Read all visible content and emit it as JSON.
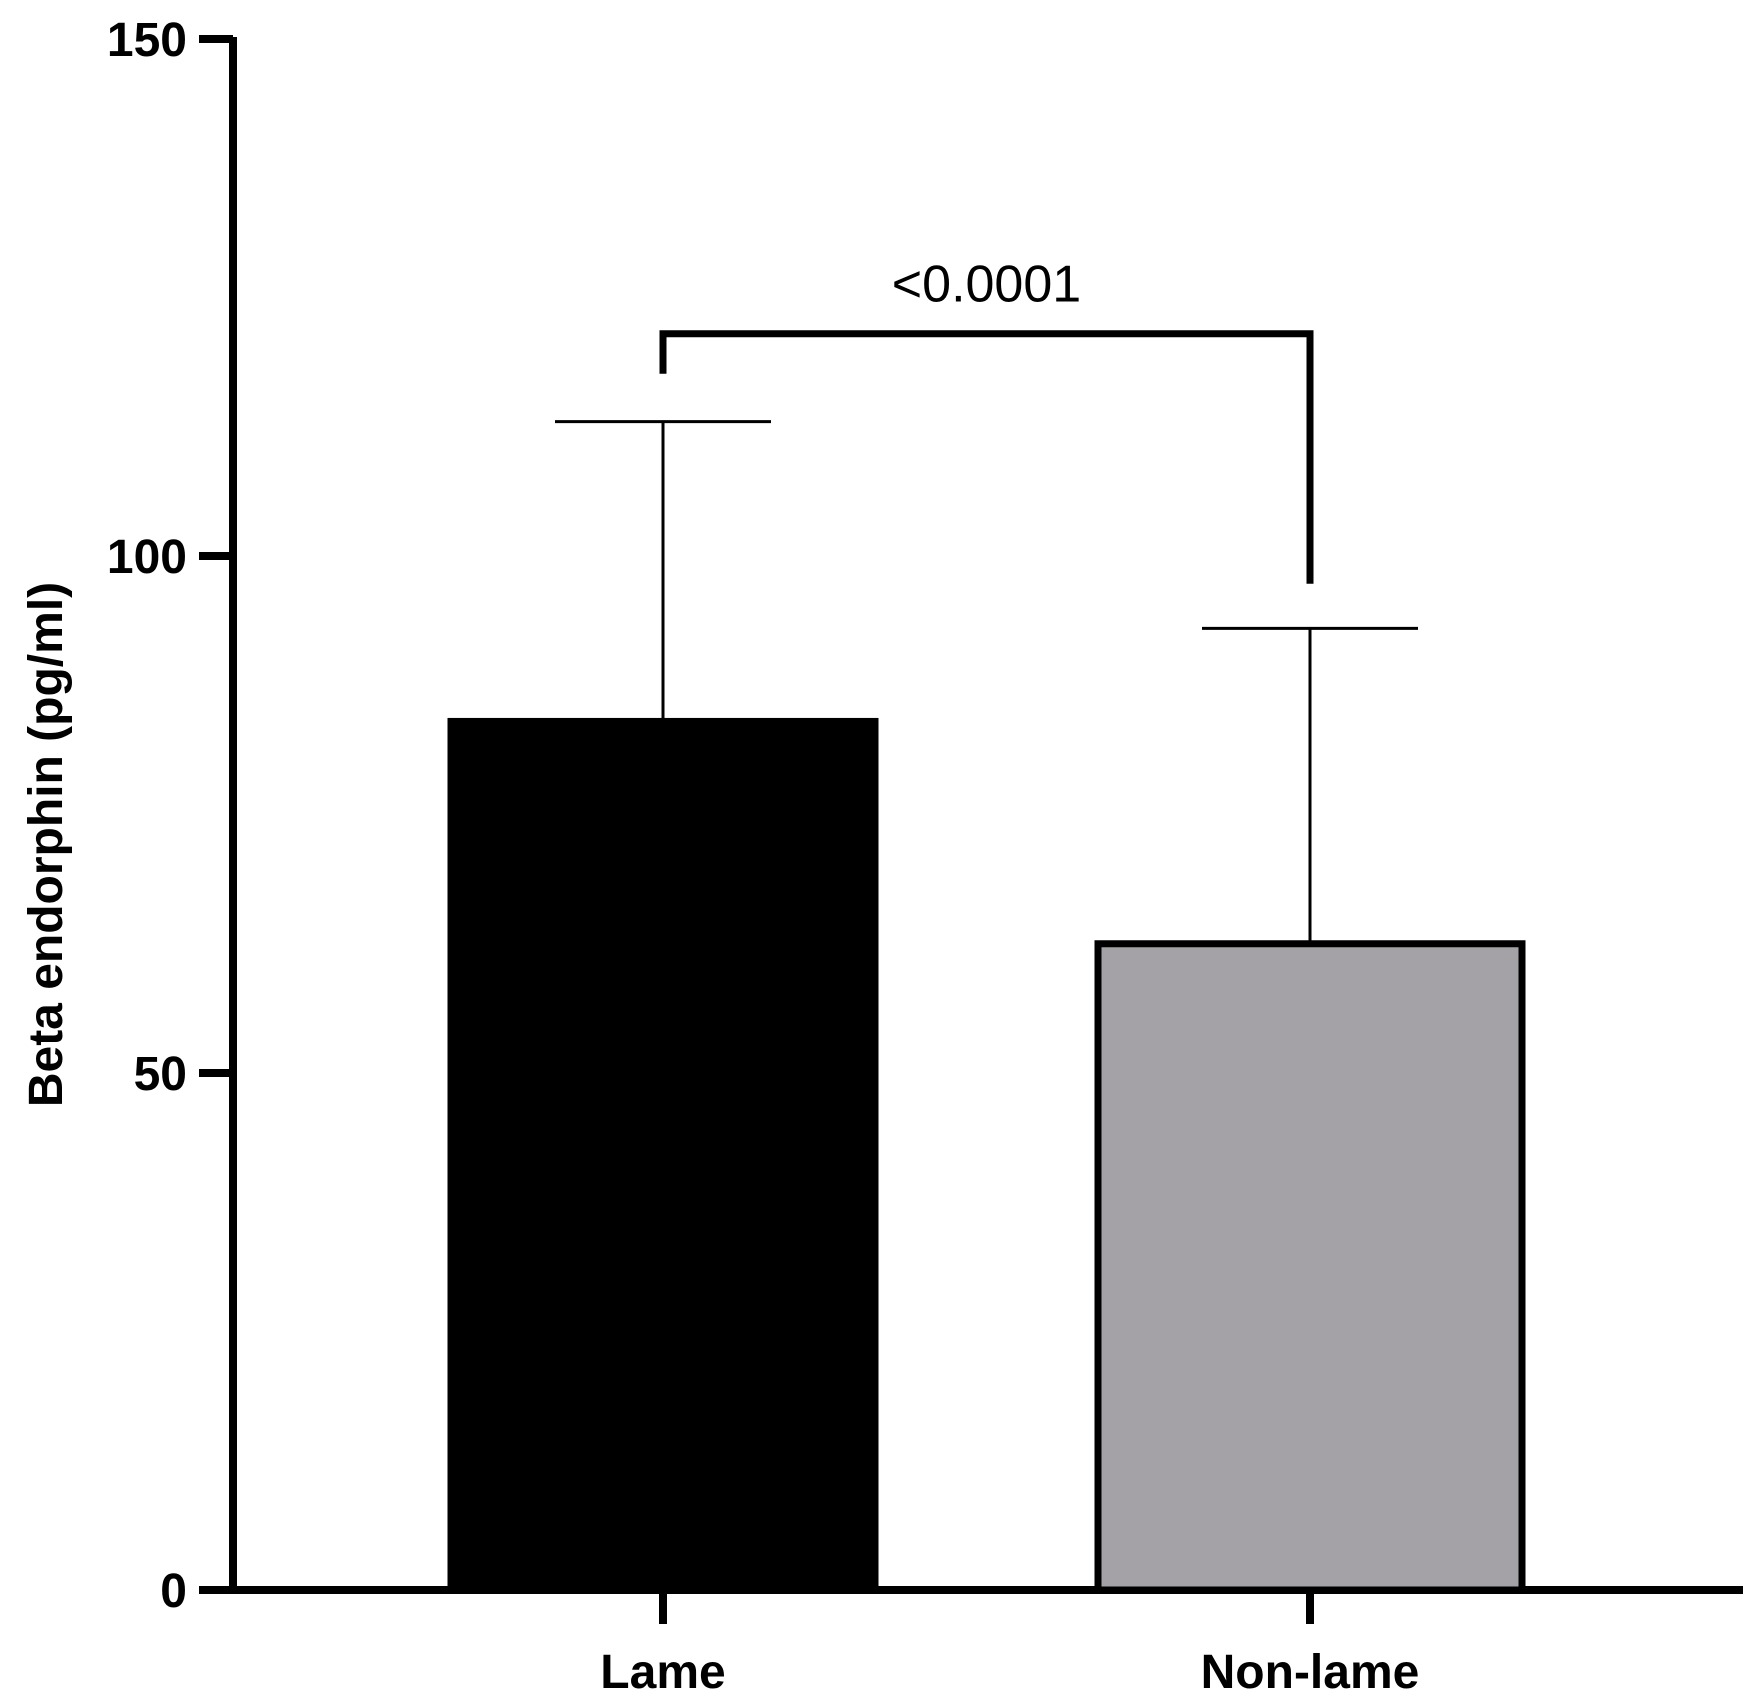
{
  "chart_data": {
    "type": "bar",
    "title": "",
    "xlabel": "",
    "ylabel": "Beta endorphin (pg/ml)",
    "ylim": [
      0,
      150
    ],
    "yticks": [
      0,
      50,
      100,
      150
    ],
    "grid": false,
    "categories": [
      "Lame",
      "Non-lame"
    ],
    "values": [
      84,
      62.5
    ],
    "error_upper": [
      113,
      93
    ],
    "bar_colors": [
      "#000000",
      "#a4a2a7"
    ],
    "edge_color": "#000000",
    "significance": {
      "label": "<0.0001",
      "between": [
        "Lame",
        "Non-lame"
      ],
      "bracket_level": 121.5
    }
  }
}
